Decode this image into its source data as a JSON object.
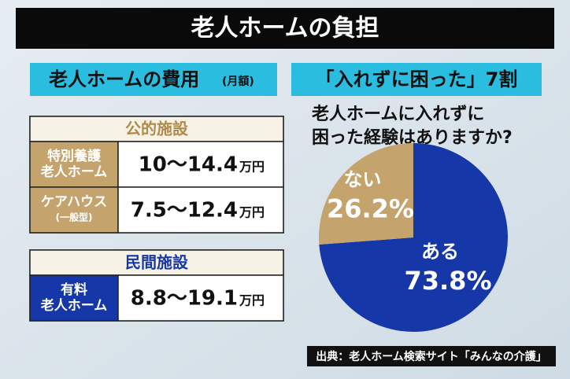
{
  "header": {
    "title": "老人ホームの負担"
  },
  "cost_panel": {
    "title": "老人ホームの費用",
    "title_note": "(月額)",
    "groups": [
      {
        "name": "公的施設",
        "rows": [
          {
            "label": [
              "特別養護",
              "老人ホーム"
            ],
            "range": "10～14.4",
            "unit": "万円"
          },
          {
            "label": [
              "ケアハウス",
              "(一般型)"
            ],
            "range": "7.5～12.4",
            "unit": "万円"
          }
        ]
      },
      {
        "name": "民間施設",
        "rows": [
          {
            "label": [
              "有料",
              "老人ホーム"
            ],
            "range": "8.8～19.1",
            "unit": "万円"
          }
        ]
      }
    ]
  },
  "survey_panel": {
    "title": "「入れずに困った」7割"
  },
  "chart_data": {
    "type": "pie",
    "title": [
      "老人ホームに入れずに",
      "困った経験はありますか?"
    ],
    "categories": [
      "ある",
      "ない"
    ],
    "values": [
      73.8,
      26.2
    ],
    "value_labels": [
      "73.8%",
      "26.2%"
    ],
    "colors": [
      "#1537a8",
      "#c4a46c"
    ]
  },
  "source": "出典：老人ホーム検索サイト「みんなの介護」"
}
